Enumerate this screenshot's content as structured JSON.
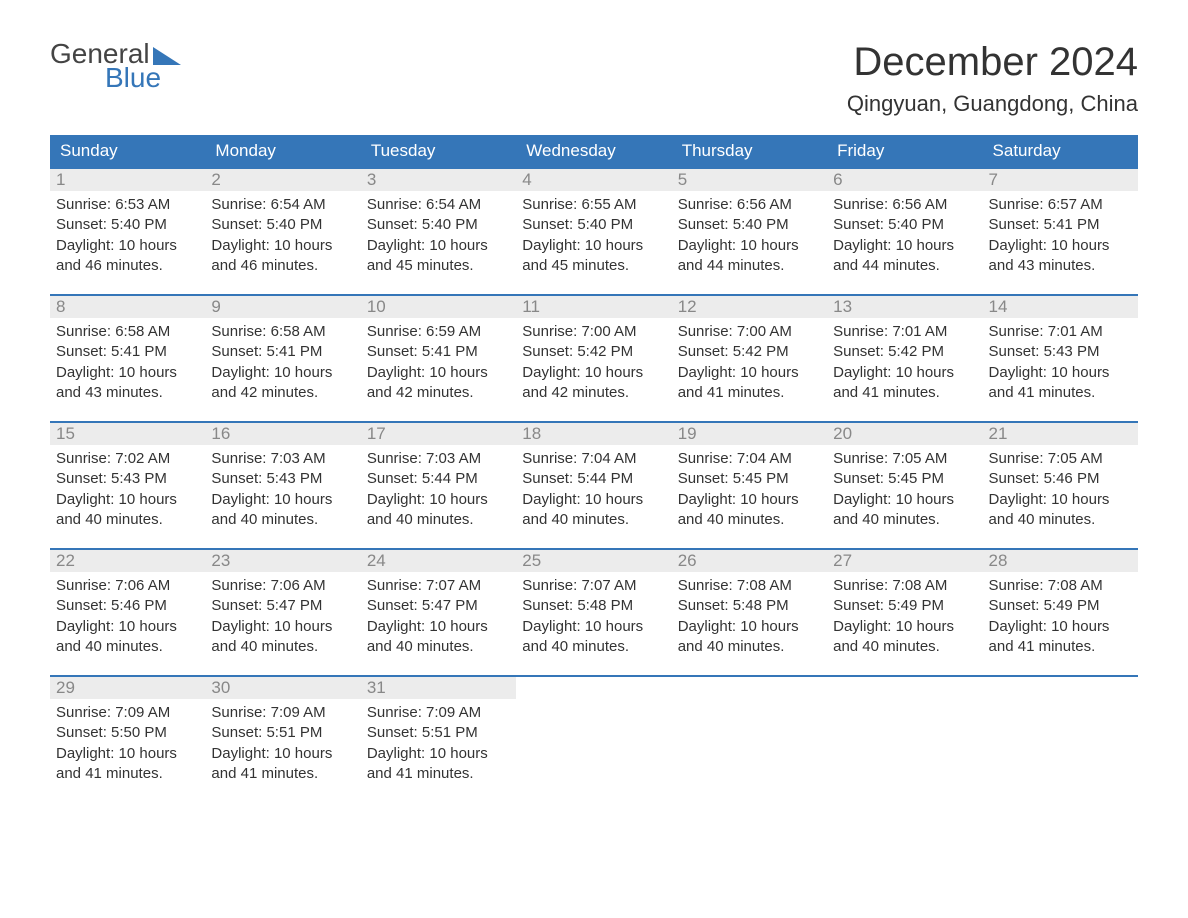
{
  "logo": {
    "text1": "General",
    "text2": "Blue"
  },
  "title": "December 2024",
  "location": "Qingyuan, Guangdong, China",
  "colors": {
    "header_bar": "#3576b8",
    "day_num_bg": "#ececec",
    "day_num_fg": "#888888",
    "text": "#333333",
    "background": "#ffffff"
  },
  "typography": {
    "title_fontsize": 40,
    "location_fontsize": 22,
    "dow_fontsize": 17,
    "daynum_fontsize": 17,
    "body_fontsize": 15
  },
  "days_of_week": [
    "Sunday",
    "Monday",
    "Tuesday",
    "Wednesday",
    "Thursday",
    "Friday",
    "Saturday"
  ],
  "weeks": [
    [
      {
        "n": "1",
        "sunrise": "6:53 AM",
        "sunset": "5:40 PM",
        "daylight": "10 hours and 46 minutes."
      },
      {
        "n": "2",
        "sunrise": "6:54 AM",
        "sunset": "5:40 PM",
        "daylight": "10 hours and 46 minutes."
      },
      {
        "n": "3",
        "sunrise": "6:54 AM",
        "sunset": "5:40 PM",
        "daylight": "10 hours and 45 minutes."
      },
      {
        "n": "4",
        "sunrise": "6:55 AM",
        "sunset": "5:40 PM",
        "daylight": "10 hours and 45 minutes."
      },
      {
        "n": "5",
        "sunrise": "6:56 AM",
        "sunset": "5:40 PM",
        "daylight": "10 hours and 44 minutes."
      },
      {
        "n": "6",
        "sunrise": "6:56 AM",
        "sunset": "5:40 PM",
        "daylight": "10 hours and 44 minutes."
      },
      {
        "n": "7",
        "sunrise": "6:57 AM",
        "sunset": "5:41 PM",
        "daylight": "10 hours and 43 minutes."
      }
    ],
    [
      {
        "n": "8",
        "sunrise": "6:58 AM",
        "sunset": "5:41 PM",
        "daylight": "10 hours and 43 minutes."
      },
      {
        "n": "9",
        "sunrise": "6:58 AM",
        "sunset": "5:41 PM",
        "daylight": "10 hours and 42 minutes."
      },
      {
        "n": "10",
        "sunrise": "6:59 AM",
        "sunset": "5:41 PM",
        "daylight": "10 hours and 42 minutes."
      },
      {
        "n": "11",
        "sunrise": "7:00 AM",
        "sunset": "5:42 PM",
        "daylight": "10 hours and 42 minutes."
      },
      {
        "n": "12",
        "sunrise": "7:00 AM",
        "sunset": "5:42 PM",
        "daylight": "10 hours and 41 minutes."
      },
      {
        "n": "13",
        "sunrise": "7:01 AM",
        "sunset": "5:42 PM",
        "daylight": "10 hours and 41 minutes."
      },
      {
        "n": "14",
        "sunrise": "7:01 AM",
        "sunset": "5:43 PM",
        "daylight": "10 hours and 41 minutes."
      }
    ],
    [
      {
        "n": "15",
        "sunrise": "7:02 AM",
        "sunset": "5:43 PM",
        "daylight": "10 hours and 40 minutes."
      },
      {
        "n": "16",
        "sunrise": "7:03 AM",
        "sunset": "5:43 PM",
        "daylight": "10 hours and 40 minutes."
      },
      {
        "n": "17",
        "sunrise": "7:03 AM",
        "sunset": "5:44 PM",
        "daylight": "10 hours and 40 minutes."
      },
      {
        "n": "18",
        "sunrise": "7:04 AM",
        "sunset": "5:44 PM",
        "daylight": "10 hours and 40 minutes."
      },
      {
        "n": "19",
        "sunrise": "7:04 AM",
        "sunset": "5:45 PM",
        "daylight": "10 hours and 40 minutes."
      },
      {
        "n": "20",
        "sunrise": "7:05 AM",
        "sunset": "5:45 PM",
        "daylight": "10 hours and 40 minutes."
      },
      {
        "n": "21",
        "sunrise": "7:05 AM",
        "sunset": "5:46 PM",
        "daylight": "10 hours and 40 minutes."
      }
    ],
    [
      {
        "n": "22",
        "sunrise": "7:06 AM",
        "sunset": "5:46 PM",
        "daylight": "10 hours and 40 minutes."
      },
      {
        "n": "23",
        "sunrise": "7:06 AM",
        "sunset": "5:47 PM",
        "daylight": "10 hours and 40 minutes."
      },
      {
        "n": "24",
        "sunrise": "7:07 AM",
        "sunset": "5:47 PM",
        "daylight": "10 hours and 40 minutes."
      },
      {
        "n": "25",
        "sunrise": "7:07 AM",
        "sunset": "5:48 PM",
        "daylight": "10 hours and 40 minutes."
      },
      {
        "n": "26",
        "sunrise": "7:08 AM",
        "sunset": "5:48 PM",
        "daylight": "10 hours and 40 minutes."
      },
      {
        "n": "27",
        "sunrise": "7:08 AM",
        "sunset": "5:49 PM",
        "daylight": "10 hours and 40 minutes."
      },
      {
        "n": "28",
        "sunrise": "7:08 AM",
        "sunset": "5:49 PM",
        "daylight": "10 hours and 41 minutes."
      }
    ],
    [
      {
        "n": "29",
        "sunrise": "7:09 AM",
        "sunset": "5:50 PM",
        "daylight": "10 hours and 41 minutes."
      },
      {
        "n": "30",
        "sunrise": "7:09 AM",
        "sunset": "5:51 PM",
        "daylight": "10 hours and 41 minutes."
      },
      {
        "n": "31",
        "sunrise": "7:09 AM",
        "sunset": "5:51 PM",
        "daylight": "10 hours and 41 minutes."
      },
      null,
      null,
      null,
      null
    ]
  ],
  "labels": {
    "sunrise": "Sunrise:",
    "sunset": "Sunset:",
    "daylight": "Daylight:"
  }
}
